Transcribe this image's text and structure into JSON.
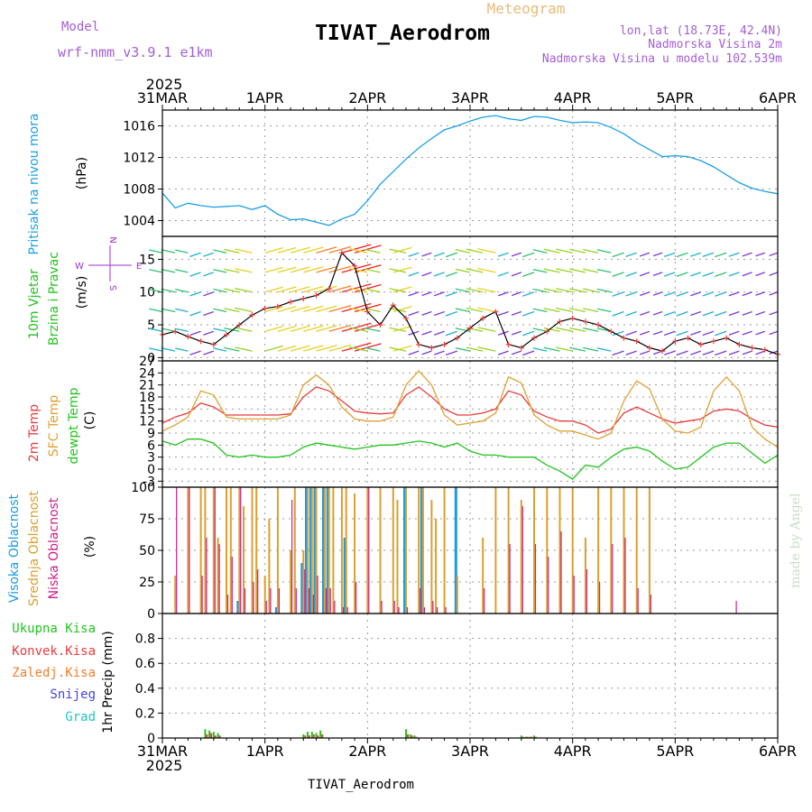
{
  "header": {
    "model_label": "Model",
    "model_name": "wrf-nmm_v3.9.1 e1km",
    "title": "TIVAT_Aerodrom",
    "product": "Meteogram",
    "lonlat": "lon,lat (18.73E, 42.4N)",
    "altitude": "Nadmorska Visina 2m",
    "model_altitude": "Nadmorska Visina u modelu 102.539m",
    "year_top": "2025",
    "year_bottom": "2025",
    "footer": "TIVAT_Aerodrom",
    "watermark": "made by Angel"
  },
  "x_axis": {
    "labels": [
      "31MAR",
      "1APR",
      "2APR",
      "3APR",
      "4APR",
      "5APR",
      "6APR"
    ],
    "range_hours": [
      0,
      144
    ]
  },
  "colors": {
    "pressure": "#1aa0e6",
    "temp2m": "#e83c3c",
    "sfc_temp": "#e0a030",
    "dewpoint": "#22c41e",
    "high_cloud": "#1a9be6",
    "mid_cloud": "#dba02e",
    "low_cloud": "#cc1f8a",
    "total_precip": "#22c41e",
    "conv_precip": "#e83c3c",
    "frozen_precip": "#f08030",
    "snow": "#4444dd",
    "graupel": "#22c4c4",
    "wind_label": "#22c41e",
    "wind_axis": "#9933cc"
  },
  "panels": {
    "pressure": {
      "label": "Pritisak na nivou mora",
      "unit": "(hPa)"
    },
    "wind": {
      "label1": "10m Vjetar",
      "label2": "Brzina i Pravac",
      "unit": "(m/s)",
      "compass": [
        "N",
        "S",
        "W",
        "E"
      ]
    },
    "temp": {
      "label1": "2m Temp",
      "label2": "SFC Temp",
      "label3": "dewpt Temp",
      "unit": "(C)"
    },
    "cloud": {
      "label1": "Visoka Oblacnost",
      "label2": "Srednja Oblacnost",
      "label3": "Niska Oblacnost",
      "unit": "(%)"
    },
    "precip": {
      "labels": [
        "Ukupna Kisa",
        "Konvek.Kisa",
        "Zaledj.Kisa",
        "Snijeg",
        "Grad"
      ],
      "unit": "1hr Precip (mm)"
    }
  },
  "chart_data": [
    {
      "type": "line",
      "panel": "pressure",
      "ylabel": "Pritisak na nivou mora (hPa)",
      "ylim": [
        1002,
        1018
      ],
      "yticks": [
        1004,
        1008,
        1012,
        1016
      ],
      "x_hours": [
        0,
        3,
        6,
        9,
        12,
        15,
        18,
        21,
        24,
        27,
        30,
        33,
        36,
        39,
        42,
        45,
        48,
        51,
        54,
        57,
        60,
        63,
        66,
        69,
        72,
        75,
        78,
        81,
        84,
        87,
        90,
        93,
        96,
        99,
        102,
        105,
        108,
        111,
        114,
        117,
        120,
        123,
        126,
        129,
        132,
        135,
        138,
        141,
        144
      ],
      "series": [
        {
          "name": "Pritisak na nivou mora",
          "values": [
            1007.5,
            1005.6,
            1006.2,
            1005.9,
            1005.7,
            1005.8,
            1005.9,
            1005.4,
            1005.9,
            1004.8,
            1004.1,
            1004.2,
            1003.8,
            1003.4,
            1004.2,
            1004.8,
            1006.5,
            1008.6,
            1010.2,
            1011.8,
            1013.2,
            1014.4,
            1015.5,
            1016.0,
            1016.6,
            1017.1,
            1017.3,
            1016.9,
            1016.7,
            1017.2,
            1017.1,
            1016.7,
            1016.4,
            1016.5,
            1016.4,
            1015.8,
            1015.0,
            1013.9,
            1013.0,
            1012.1,
            1012.2,
            1012.1,
            1011.6,
            1010.8,
            1009.8,
            1008.8,
            1008.1,
            1007.7,
            1007.4
          ]
        }
      ]
    },
    {
      "type": "line",
      "panel": "wind",
      "ylabel": "10m Vjetar Brzina i Pravac (m/s)",
      "ylim": [
        -0.5,
        18.5
      ],
      "yticks": [
        0,
        5,
        10,
        15
      ],
      "x_hours": [
        0,
        3,
        6,
        9,
        12,
        15,
        18,
        21,
        24,
        27,
        30,
        33,
        36,
        39,
        42,
        45,
        48,
        51,
        54,
        57,
        60,
        63,
        66,
        69,
        72,
        75,
        78,
        81,
        84,
        87,
        90,
        93,
        96,
        99,
        102,
        105,
        108,
        111,
        114,
        117,
        120,
        123,
        126,
        129,
        132,
        135,
        138,
        141,
        144
      ],
      "series": [
        {
          "name": "10m Vjetar",
          "values": [
            3.5,
            4.0,
            3.2,
            2.5,
            2.0,
            3.5,
            5.0,
            6.5,
            7.5,
            7.8,
            8.5,
            9.0,
            9.5,
            10.5,
            16.0,
            14.0,
            7.0,
            5.0,
            8.0,
            6.0,
            2.0,
            1.5,
            2.0,
            3.0,
            4.5,
            6.0,
            7.0,
            2.0,
            1.5,
            3.0,
            4.0,
            5.5,
            6.0,
            5.5,
            5.0,
            4.0,
            3.0,
            2.5,
            1.5,
            1.0,
            2.5,
            3.0,
            2.0,
            2.5,
            3.0,
            2.0,
            1.5,
            1.2,
            0.5
          ]
        }
      ]
    },
    {
      "type": "line",
      "panel": "temperature",
      "ylabel": "2m Temp / SFC Temp / dewpt Temp (C)",
      "ylim": [
        -4.5,
        27
      ],
      "yticks": [
        -3,
        0,
        3,
        6,
        9,
        12,
        15,
        18,
        21,
        24,
        27
      ],
      "x_hours": [
        0,
        3,
        6,
        9,
        12,
        15,
        18,
        21,
        24,
        27,
        30,
        33,
        36,
        39,
        42,
        45,
        48,
        51,
        54,
        57,
        60,
        63,
        66,
        69,
        72,
        75,
        78,
        81,
        84,
        87,
        90,
        93,
        96,
        99,
        102,
        105,
        108,
        111,
        114,
        117,
        120,
        123,
        126,
        129,
        132,
        135,
        138,
        141,
        144
      ],
      "series": [
        {
          "name": "2m Temp",
          "values": [
            11.5,
            13.0,
            14.0,
            16.5,
            15.5,
            13.5,
            13.5,
            13.5,
            13.5,
            13.5,
            13.8,
            18.0,
            20.5,
            19.5,
            17.0,
            14.5,
            14.0,
            13.8,
            14.0,
            18.5,
            20.5,
            18.0,
            15.0,
            13.5,
            13.5,
            14.0,
            15.0,
            19.5,
            18.5,
            14.5,
            13.0,
            12.0,
            12.0,
            11.0,
            9.0,
            10.0,
            14.0,
            15.5,
            14.0,
            12.5,
            11.5,
            12.0,
            12.5,
            14.5,
            15.0,
            14.5,
            12.5,
            11.0,
            10.5
          ]
        },
        {
          "name": "SFC Temp",
          "values": [
            9.5,
            11.0,
            13.0,
            19.5,
            18.5,
            13.0,
            12.5,
            12.5,
            12.5,
            12.5,
            13.5,
            21.0,
            23.5,
            21.0,
            15.5,
            12.5,
            12.0,
            12.0,
            13.0,
            21.0,
            24.5,
            21.0,
            13.5,
            11.0,
            11.5,
            12.0,
            14.0,
            23.0,
            21.5,
            13.5,
            11.0,
            9.5,
            9.5,
            8.5,
            7.5,
            9.0,
            17.0,
            22.0,
            20.0,
            12.5,
            9.5,
            9.0,
            10.5,
            19.5,
            23.0,
            19.5,
            10.5,
            7.5,
            5.5
          ]
        },
        {
          "name": "dewpt Temp",
          "values": [
            7.0,
            6.0,
            7.5,
            7.5,
            6.5,
            3.5,
            3.0,
            3.5,
            3.0,
            3.0,
            3.5,
            5.5,
            6.5,
            6.0,
            5.5,
            5.0,
            5.5,
            6.0,
            6.0,
            6.5,
            7.0,
            6.5,
            5.5,
            6.5,
            4.5,
            3.5,
            3.5,
            3.0,
            3.0,
            3.0,
            1.0,
            -0.5,
            -2.5,
            1.0,
            0.5,
            3.0,
            5.0,
            5.5,
            4.5,
            2.0,
            0.0,
            0.5,
            3.0,
            5.5,
            6.5,
            6.5,
            4.0,
            1.5,
            3.5
          ]
        }
      ]
    },
    {
      "type": "bar",
      "panel": "cloud",
      "ylabel": "Oblacnost (%)",
      "ylim": [
        0,
        100
      ],
      "yticks": [
        0,
        25,
        50,
        75,
        100
      ],
      "x_hours": [
        3,
        6,
        9,
        10,
        12,
        13,
        15,
        16,
        18,
        19,
        21,
        22,
        24,
        25,
        27,
        30,
        31,
        33,
        34,
        35,
        36,
        38,
        39,
        40,
        42,
        43,
        45,
        48,
        51,
        54,
        55,
        57,
        60,
        61,
        63,
        64,
        66,
        69,
        75,
        78,
        81,
        84,
        87,
        90,
        93,
        96,
        99,
        102,
        105,
        108,
        111,
        114,
        120,
        134
      ],
      "series": [
        {
          "name": "Visoka Oblacnost",
          "values": [
            0,
            0,
            0,
            0,
            0,
            0,
            0,
            0,
            10,
            0,
            0,
            0,
            0,
            0,
            5,
            0,
            0,
            40,
            100,
            100,
            100,
            100,
            100,
            0,
            0,
            60,
            0,
            0,
            0,
            0,
            0,
            100,
            0,
            100,
            0,
            0,
            0,
            100,
            0,
            0,
            0,
            0,
            0,
            0,
            0,
            0,
            0,
            0,
            0,
            0,
            0,
            0,
            0,
            0
          ]
        },
        {
          "name": "Srednja Oblacnost",
          "values": [
            30,
            100,
            100,
            100,
            100,
            60,
            100,
            100,
            100,
            85,
            100,
            100,
            30,
            75,
            100,
            50,
            100,
            50,
            100,
            100,
            100,
            100,
            100,
            100,
            100,
            100,
            95,
            100,
            100,
            100,
            90,
            100,
            100,
            100,
            90,
            75,
            100,
            30,
            60,
            100,
            100,
            90,
            100,
            100,
            100,
            100,
            60,
            100,
            100,
            100,
            100,
            100,
            0,
            0
          ]
        },
        {
          "name": "Niska Oblacnost",
          "values": [
            100,
            100,
            30,
            60,
            100,
            55,
            15,
            45,
            100,
            20,
            25,
            35,
            10,
            20,
            20,
            90,
            20,
            35,
            20,
            15,
            30,
            20,
            20,
            10,
            5,
            5,
            25,
            100,
            10,
            10,
            5,
            5,
            20,
            5,
            10,
            5,
            5,
            0,
            20,
            0,
            55,
            85,
            55,
            45,
            65,
            30,
            35,
            25,
            55,
            60,
            20,
            15,
            0,
            10
          ]
        }
      ]
    },
    {
      "type": "bar",
      "panel": "precip",
      "ylabel": "1hr Precip (mm)",
      "ylim": [
        0,
        1.0
      ],
      "yticks": [
        0,
        0.2,
        0.4,
        0.6,
        0.8
      ],
      "x_hours": [
        10,
        11,
        12,
        13,
        33,
        34,
        35,
        36,
        37,
        57,
        58,
        59,
        84,
        85,
        86,
        87
      ],
      "series": [
        {
          "name": "Ukupna Kisa",
          "values": [
            0.07,
            0.06,
            0.05,
            0.04,
            0.03,
            0.05,
            0.05,
            0.04,
            0.06,
            0.07,
            0.03,
            0.02,
            0.02,
            0.01,
            0.01,
            0.02
          ]
        },
        {
          "name": "Konvek.Kisa",
          "values": [
            0.03,
            0.04,
            0.02,
            0.02,
            0.02,
            0.02,
            0.03,
            0.02,
            0.03,
            0.03,
            0.02,
            0.01,
            0.01,
            0.01,
            0.01,
            0.01
          ]
        }
      ]
    }
  ]
}
